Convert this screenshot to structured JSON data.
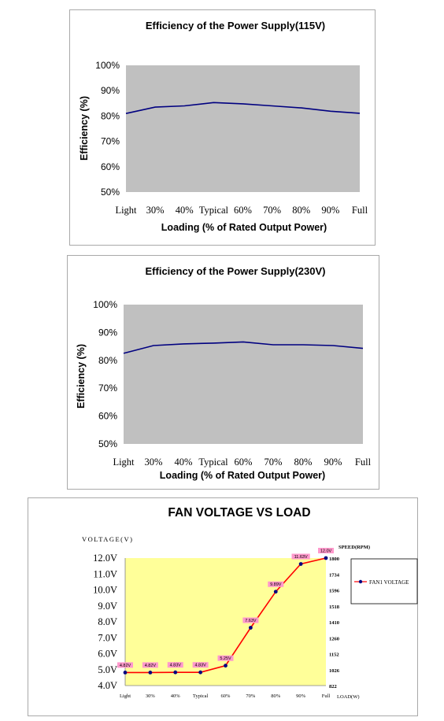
{
  "chart_data": [
    {
      "type": "line",
      "title": "Efficiency of the Power Supply(115V)",
      "xlabel": "Loading (% of Rated Output Power)",
      "ylabel": "Efficiency (%)",
      "categories": [
        "Light",
        "30%",
        "40%",
        "Typical",
        "60%",
        "70%",
        "80%",
        "90%",
        "Full"
      ],
      "yticks": [
        "100%",
        "90%",
        "80%",
        "70%",
        "60%",
        "50%"
      ],
      "ylim": [
        50,
        100
      ],
      "plot_bg": "#c0c0c0",
      "line_color": "#000080",
      "series": [
        {
          "values": [
            81,
            83.5,
            84,
            85.3,
            84.8,
            84,
            83.2,
            81.9,
            81.1
          ]
        }
      ]
    },
    {
      "type": "line",
      "title": "Efficiency of the Power Supply(230V)",
      "xlabel": "Loading (% of Rated Output Power)",
      "ylabel": "Efficiency (%)",
      "categories": [
        "Light",
        "30%",
        "40%",
        "Typical",
        "60%",
        "70%",
        "80%",
        "90%",
        "Full"
      ],
      "yticks": [
        "100%",
        "90%",
        "80%",
        "70%",
        "60%",
        "50%"
      ],
      "ylim": [
        50,
        100
      ],
      "plot_bg": "#c0c0c0",
      "line_color": "#000080",
      "series": [
        {
          "values": [
            82.5,
            85.3,
            85.9,
            86.2,
            86.6,
            85.6,
            85.6,
            85.3,
            84.3
          ]
        }
      ]
    },
    {
      "type": "line",
      "title": "FAN VOLTAGE VS LOAD",
      "ylabel": "VOLTAGE(V)",
      "y2label": "SPEED(RPM)",
      "xlabel": "LOAD(W)",
      "categories": [
        "Light",
        "30%",
        "40%",
        "Typical",
        "60%",
        "70%",
        "80%",
        "90%",
        "Full"
      ],
      "yticks": [
        "12.0V",
        "11.0V",
        "10.0V",
        "9.0V",
        "8.0V",
        "7.0V",
        "6.0V",
        "5.0V",
        "4.0V"
      ],
      "ylim": [
        4,
        12
      ],
      "y2ticks": [
        "1800",
        "1734",
        "1596",
        "1518",
        "1410",
        "1260",
        "1152",
        "1026",
        "822"
      ],
      "plot_bg": "#ffff99",
      "line_color": "#ff0000",
      "marker_color": "#000080",
      "label_bg": "#ff99cc",
      "series": [
        {
          "name": "FAN1 VOLTAGE",
          "values": [
            4.82,
            4.82,
            4.83,
            4.83,
            5.25,
            7.63,
            9.89,
            11.63,
            12.0
          ],
          "labels": [
            "4.82V",
            "4.82V",
            "4.83V",
            "4.83V",
            "5.25V",
            "7.63V",
            "9.89V",
            "11.63V",
            "12.0V"
          ]
        }
      ]
    }
  ]
}
